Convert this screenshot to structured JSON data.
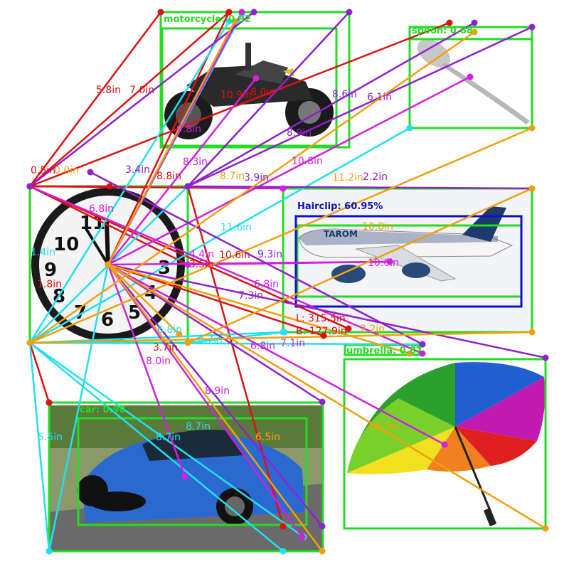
{
  "detections": [
    {
      "label": "motorcycle: 0.92",
      "color": "#22dd22"
    },
    {
      "label": "spoon: 0.88",
      "color": "#22dd22"
    },
    {
      "label": "Hairclip: 60.95%",
      "color": "#1010cc"
    },
    {
      "label": "car: 0.90",
      "color": "#22dd22"
    },
    {
      "label": "umbrella: 0.87",
      "color": "#22dd22"
    }
  ],
  "measurements": [
    "5.8in",
    "7.0in",
    "10.9in",
    "8.0in",
    "8.6in",
    "6.1in",
    "9.8in",
    "8.9in",
    "0.5in",
    "0.0in",
    "3.4in",
    "8.8in",
    "8.3in",
    "8.7in",
    "3.9in",
    "10.8in",
    "11.2in",
    "2.2in",
    "11.6in",
    "10.8in",
    "10.6in",
    "10.6in",
    "9.3in",
    "1.4in",
    "6.8in",
    "1.8in",
    "4.4in",
    "3.5in",
    "6.8in",
    "7.3in",
    "L: 315.5in",
    "B: 127.9in",
    "2.2in",
    "6.8in",
    "8.7in",
    "6.8in",
    "7.1in",
    "3.7in",
    "8.0in",
    "8.9in",
    "5.5in",
    "8.7in",
    "8.7in",
    "6.5in",
    "10.7in"
  ],
  "colors": {
    "box_green": "#22dd22",
    "box_blue": "#1010cc",
    "red": "#dd1111",
    "cyan": "#22e0f0",
    "magenta": "#d020e0",
    "purple": "#9020d0",
    "orange": "#f0a010"
  }
}
